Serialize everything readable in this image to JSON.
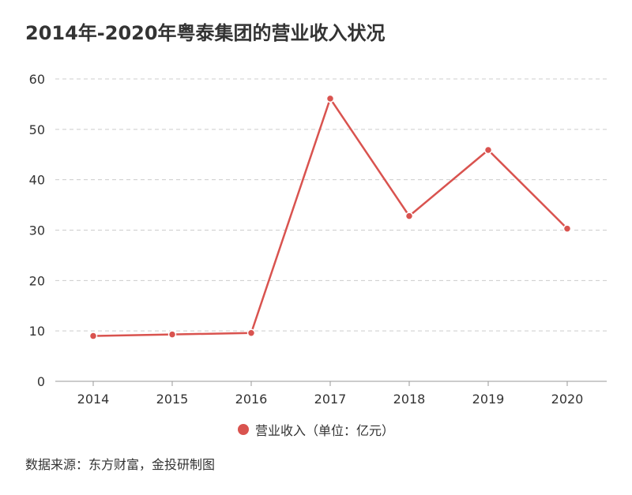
{
  "title": "2014年-2020年粤泰集团的营业收入状况",
  "source": "数据来源：东方财富，金投研制图",
  "colors": {
    "series": "#d9534f",
    "grid": "#cccccc",
    "axis": "#999999",
    "text": "#333333"
  },
  "chart_data": {
    "type": "line",
    "title": "2014年-2020年粤泰集团的营业收入状况",
    "categories": [
      "2014",
      "2015",
      "2016",
      "2017",
      "2018",
      "2019",
      "2020"
    ],
    "series": [
      {
        "name": "营业收入（单位：亿元）",
        "values": [
          9.0,
          9.3,
          9.6,
          56.1,
          32.8,
          45.9,
          30.3
        ]
      }
    ],
    "yticks": [
      0,
      10,
      20,
      30,
      40,
      50,
      60
    ],
    "ylim": [
      0,
      60
    ],
    "grid": true,
    "legend_position": "bottom"
  }
}
